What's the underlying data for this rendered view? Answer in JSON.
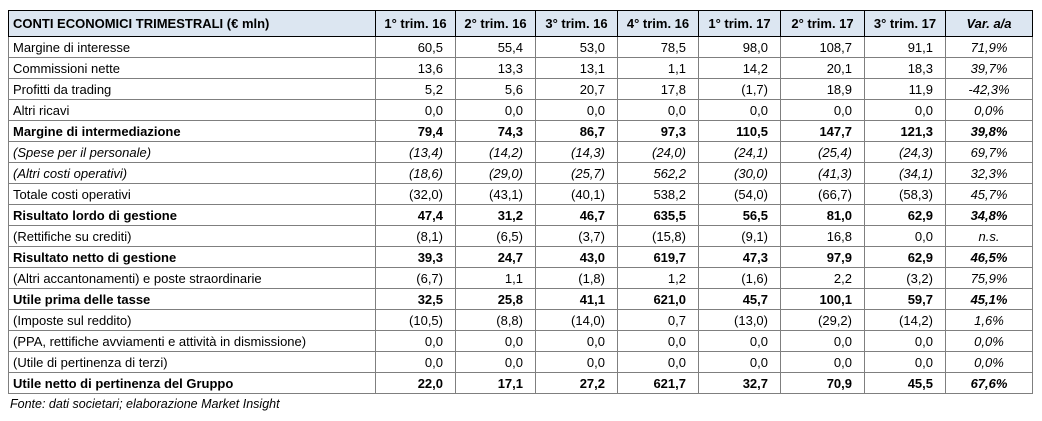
{
  "table": {
    "title": "CONTI ECONOMICI TRIMESTRALI (€ mln)",
    "columns": [
      "1° trim. 16",
      "2° trim. 16",
      "3° trim. 16",
      "4° trim. 16",
      "1° trim. 17",
      "2° trim. 17",
      "3° trim. 17",
      "Var. a/a"
    ],
    "rows": [
      {
        "label": "Margine di interesse",
        "values": [
          "60,5",
          "55,4",
          "53,0",
          "78,5",
          "98,0",
          "108,7",
          "91,1",
          "71,9%"
        ]
      },
      {
        "label": "Commissioni nette",
        "values": [
          "13,6",
          "13,3",
          "13,1",
          "1,1",
          "14,2",
          "20,1",
          "18,3",
          "39,7%"
        ]
      },
      {
        "label": "Profitti da trading",
        "values": [
          "5,2",
          "5,6",
          "20,7",
          "17,8",
          "(1,7)",
          "18,9",
          "11,9",
          "-42,3%"
        ]
      },
      {
        "label": "Altri ricavi",
        "values": [
          "0,0",
          "0,0",
          "0,0",
          "0,0",
          "0,0",
          "0,0",
          "0,0",
          "0,0%"
        ]
      },
      {
        "label": "Margine di intermediazione",
        "values": [
          "79,4",
          "74,3",
          "86,7",
          "97,3",
          "110,5",
          "147,7",
          "121,3",
          "39,8%"
        ]
      },
      {
        "label": "(Spese per il personale)",
        "values": [
          "(13,4)",
          "(14,2)",
          "(14,3)",
          "(24,0)",
          "(24,1)",
          "(25,4)",
          "(24,3)",
          "69,7%"
        ]
      },
      {
        "label": "(Altri costi operativi)",
        "values": [
          "(18,6)",
          "(29,0)",
          "(25,7)",
          "562,2",
          "(30,0)",
          "(41,3)",
          "(34,1)",
          "32,3%"
        ]
      },
      {
        "label": "Totale costi operativi",
        "values": [
          "(32,0)",
          "(43,1)",
          "(40,1)",
          "538,2",
          "(54,0)",
          "(66,7)",
          "(58,3)",
          "45,7%"
        ]
      },
      {
        "label": "Risultato lordo di gestione",
        "values": [
          "47,4",
          "31,2",
          "46,7",
          "635,5",
          "56,5",
          "81,0",
          "62,9",
          "34,8%"
        ]
      },
      {
        "label": "(Rettifiche su crediti)",
        "values": [
          "(8,1)",
          "(6,5)",
          "(3,7)",
          "(15,8)",
          "(9,1)",
          "16,8",
          "0,0",
          "n.s."
        ]
      },
      {
        "label": "Risultato netto di gestione",
        "values": [
          "39,3",
          "24,7",
          "43,0",
          "619,7",
          "47,3",
          "97,9",
          "62,9",
          "46,5%"
        ]
      },
      {
        "label": "(Altri accantonamenti) e poste straordinarie",
        "values": [
          "(6,7)",
          "1,1",
          "(1,8)",
          "1,2",
          "(1,6)",
          "2,2",
          "(3,2)",
          "75,9%"
        ]
      },
      {
        "label": "Utile prima delle tasse",
        "values": [
          "32,5",
          "25,8",
          "41,1",
          "621,0",
          "45,7",
          "100,1",
          "59,7",
          "45,1%"
        ]
      },
      {
        "label": "(Imposte sul reddito)",
        "values": [
          "(10,5)",
          "(8,8)",
          "(14,0)",
          "0,7",
          "(13,0)",
          "(29,2)",
          "(14,2)",
          "1,6%"
        ]
      },
      {
        "label": "(PPA, rettifiche avviamenti e attività in dismissione)",
        "values": [
          "0,0",
          "0,0",
          "0,0",
          "0,0",
          "0,0",
          "0,0",
          "0,0",
          "0,0%"
        ]
      },
      {
        "label": "(Utile di pertinenza di terzi)",
        "values": [
          "0,0",
          "0,0",
          "0,0",
          "0,0",
          "0,0",
          "0,0",
          "0,0",
          "0,0%"
        ]
      },
      {
        "label": "Utile netto di pertinenza del Gruppo",
        "values": [
          "22,0",
          "17,1",
          "27,2",
          "621,7",
          "32,7",
          "70,9",
          "45,5",
          "67,6%"
        ]
      }
    ]
  },
  "footnote": "Fonte: dati societari; elaborazione Market Insight"
}
